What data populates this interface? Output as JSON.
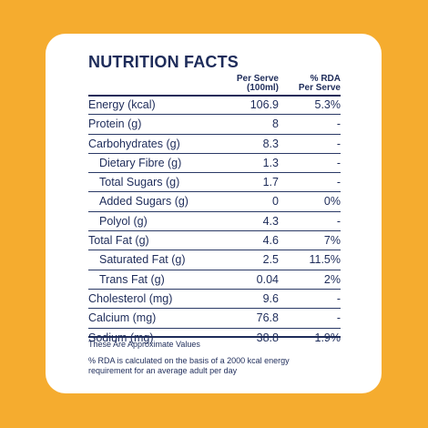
{
  "title": "NUTRITION FACTS",
  "header": {
    "per_serve_line1": "Per Serve",
    "per_serve_line2": "(100ml)",
    "rda_line1": "% RDA",
    "rda_line2": "Per Serve"
  },
  "rows": [
    {
      "name": "Energy (kcal)",
      "value": "106.9",
      "rda": "5.3%",
      "sub": false
    },
    {
      "name": "Protein (g)",
      "value": "8",
      "rda": "-",
      "sub": false
    },
    {
      "name": "Carbohydrates (g)",
      "value": "8.3",
      "rda": "-",
      "sub": false
    },
    {
      "name": "Dietary Fibre (g)",
      "value": "1.3",
      "rda": "-",
      "sub": true
    },
    {
      "name": "Total Sugars (g)",
      "value": "1.7",
      "rda": "-",
      "sub": true
    },
    {
      "name": "Added Sugars (g)",
      "value": "0",
      "rda": "0%",
      "sub": true
    },
    {
      "name": "Polyol (g)",
      "value": "4.3",
      "rda": "-",
      "sub": true
    },
    {
      "name": "Total Fat (g)",
      "value": "4.6",
      "rda": "7%",
      "sub": false
    },
    {
      "name": "Saturated Fat (g)",
      "value": "2.5",
      "rda": "11.5%",
      "sub": true
    },
    {
      "name": "Trans Fat (g)",
      "value": "0.04",
      "rda": "2%",
      "sub": true
    },
    {
      "name": "Cholesterol (mg)",
      "value": "9.6",
      "rda": "-",
      "sub": false
    },
    {
      "name": "Calcium (mg)",
      "value": "76.8",
      "rda": "-",
      "sub": false
    },
    {
      "name": "Sodium (mg)",
      "value": "38.8",
      "rda": "1.9%",
      "sub": false
    }
  ],
  "note_approx": "These Are Approximate Values",
  "note_rda_line1": "% RDA is calculated on the basis of a 2000 kcal energy",
  "note_rda_line2": "requirement for an average adult per day",
  "colors": {
    "background": "#F5AC2F",
    "card": "#FFFFFF",
    "text": "#1E2C5A"
  }
}
